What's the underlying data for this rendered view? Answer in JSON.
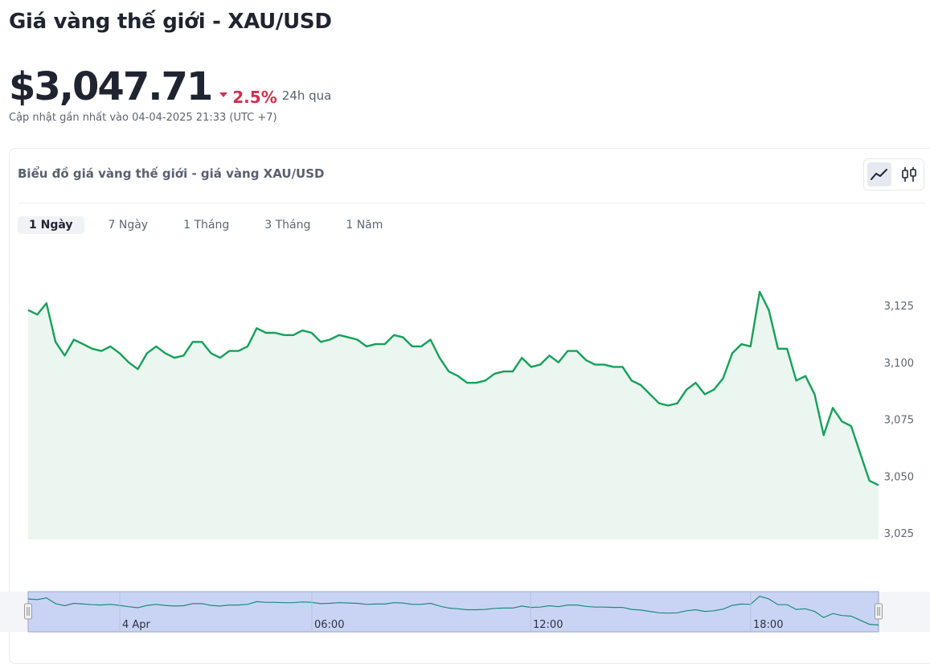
{
  "page": {
    "title": "Giá vàng thế giới - XAU/USD",
    "price": "$3,047.71",
    "change": "2.5%",
    "change_period": "24h qua",
    "updated": "Cập nhật gần nhất vào 04-04-2025 21:33 (UTC +7)"
  },
  "card": {
    "title": "Biểu đồ giá vàng thế giới - giá vàng XAU/USD",
    "chart_types": [
      "line-chart-icon",
      "candlestick-icon"
    ],
    "active_chart_type": "line-chart-icon"
  },
  "tabs": [
    {
      "label": "1 Ngày",
      "active": true
    },
    {
      "label": "7 Ngày",
      "active": false
    },
    {
      "label": "1 Tháng",
      "active": false
    },
    {
      "label": "3 Tháng",
      "active": false
    },
    {
      "label": "1 Năm",
      "active": false
    }
  ],
  "colors": {
    "line": "#16a05a",
    "area": "#eaf6ef",
    "navigator_bg": "#c9d4f4",
    "negative": "#d0304f"
  },
  "chart_data": {
    "type": "area",
    "title": "",
    "xlabel": "",
    "ylabel": "",
    "ylim": [
      3025,
      3125
    ],
    "yticks": [
      3025,
      3050,
      3075,
      3100,
      3125
    ],
    "ytick_labels": [
      "3,025",
      "3,050",
      "3,075",
      "3,100",
      "3,125"
    ],
    "grid": false,
    "legend": "none",
    "series": [
      {
        "values": [
          3123,
          3121,
          3126,
          3109,
          3103,
          3110,
          3108,
          3106,
          3105,
          3107,
          3104,
          3100,
          3097,
          3104,
          3107,
          3104,
          3102,
          3103,
          3109,
          3109,
          3104,
          3102,
          3105,
          3105,
          3107,
          3115,
          3113,
          3113,
          3112,
          3112,
          3114,
          3113,
          3109,
          3110,
          3112,
          3111,
          3110,
          3107,
          3108,
          3108,
          3112,
          3111,
          3107,
          3107,
          3110,
          3102,
          3096,
          3094,
          3091,
          3091,
          3092,
          3095,
          3096,
          3096,
          3102,
          3098,
          3099,
          3103,
          3100,
          3105,
          3105,
          3101,
          3099,
          3099,
          3098,
          3098,
          3092,
          3090,
          3086,
          3082,
          3081,
          3082,
          3088,
          3091,
          3086,
          3088,
          3093,
          3104,
          3108,
          3107,
          3131,
          3123,
          3106,
          3106,
          3092,
          3094,
          3086,
          3068,
          3080,
          3074,
          3072,
          3060,
          3048,
          3046
        ]
      }
    ],
    "navigator_labels": [
      "4 Apr",
      "06:00",
      "12:00",
      "18:00"
    ]
  }
}
